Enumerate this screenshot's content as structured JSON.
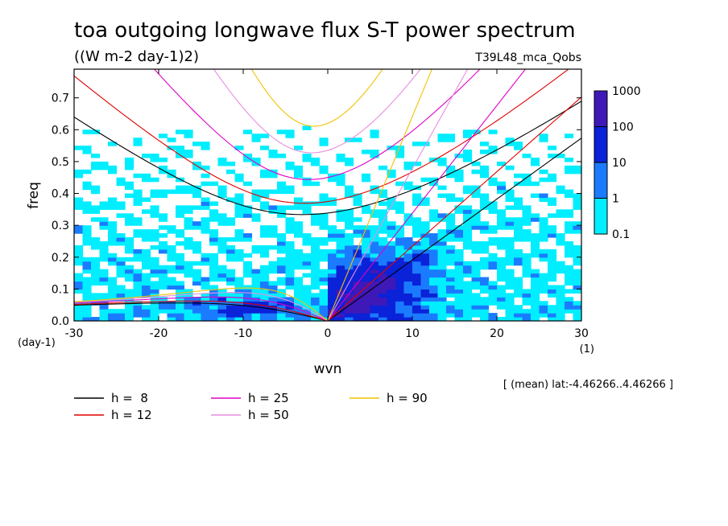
{
  "chart_data": {
    "type": "heatmap",
    "title": "toa outgoing longwave flux S-T power spectrum",
    "subtitle": "((W m-2 day-1)2)",
    "run_label": "T39L48_mca_Qobs",
    "xlabel": "wvn",
    "ylabel": "freq",
    "x_unit": "(1)",
    "y_unit": "(day-1)",
    "xlim": [
      -30,
      30
    ],
    "ylim": [
      0,
      0.79
    ],
    "x_ticks": [
      "-30",
      "-20",
      "-10",
      "0",
      "10",
      "20",
      "30"
    ],
    "y_ticks": [
      "0.0",
      "0.1",
      "0.2",
      "0.3",
      "0.4",
      "0.5",
      "0.6",
      "0.7"
    ],
    "colorbar": {
      "scale": "log",
      "levels": [
        "0.1",
        "1",
        "10",
        "100",
        "1000"
      ],
      "colors": [
        "#00eeff",
        "#1a7bff",
        "#0a22d8",
        "#3f18b8"
      ]
    },
    "note": "[ (mean) lat:-4.46266..4.46266 ]",
    "dispersion_curves": [
      {
        "name": "h =  8",
        "color": "#000000",
        "equivalent_depth_m": 8
      },
      {
        "name": "h = 12",
        "color": "#e00000",
        "equivalent_depth_m": 12
      },
      {
        "name": "h = 25",
        "color": "#e000c8",
        "equivalent_depth_m": 25
      },
      {
        "name": "h = 50",
        "color": "#e88ee0",
        "equivalent_depth_m": 50
      },
      {
        "name": "h = 90",
        "color": "#f2c200",
        "equivalent_depth_m": 90
      }
    ]
  }
}
